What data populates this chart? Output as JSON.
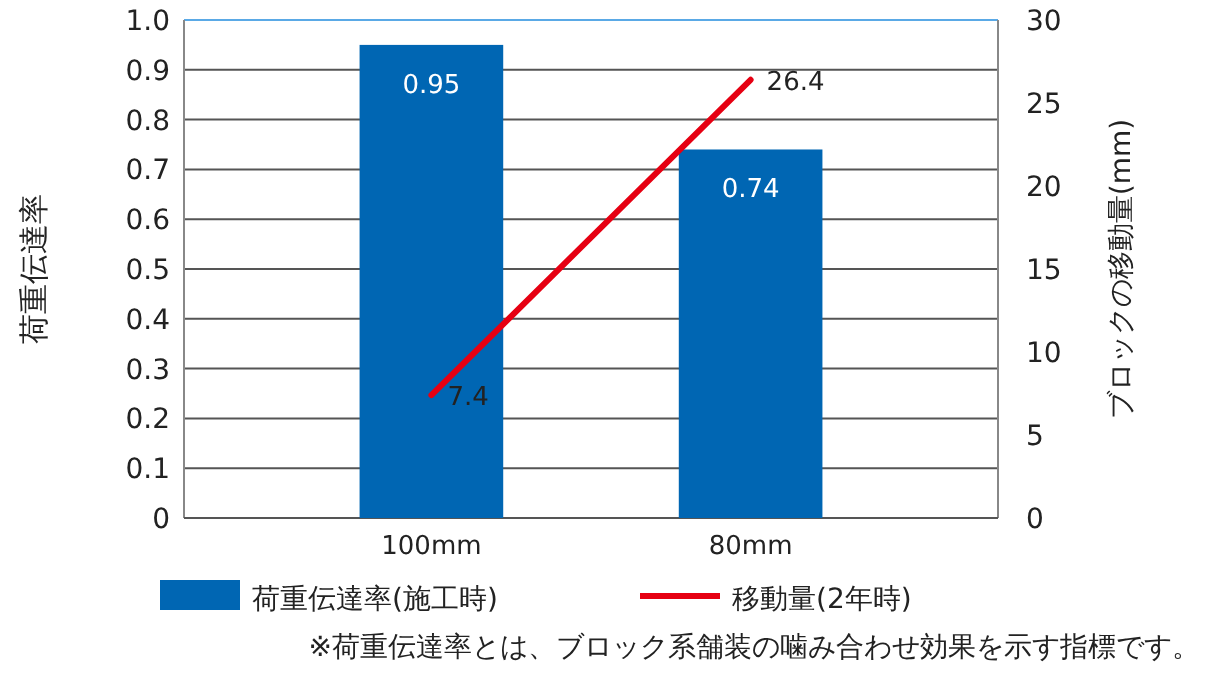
{
  "chart_data": {
    "type": "bar",
    "categories": [
      "100mm",
      "80mm"
    ],
    "series": [
      {
        "name": "荷重伝達率(施工時)",
        "color": "#0066b3",
        "values": [
          0.95,
          0.74
        ]
      },
      {
        "name": "移動量(2年時)",
        "type": "line",
        "axis": "y2",
        "color": "#e60012",
        "values": [
          7.4,
          26.4
        ]
      }
    ],
    "ylabel": "荷重伝達率",
    "y2label": "ブロックの移動量(mm)",
    "ylim": [
      0,
      1
    ],
    "yticks": [
      {
        "value": 0,
        "label": "0"
      },
      {
        "value": 0.1,
        "label": "0.1"
      },
      {
        "value": 0.2,
        "label": "0.2"
      },
      {
        "value": 0.3,
        "label": "0.3"
      },
      {
        "value": 0.4,
        "label": "0.4"
      },
      {
        "value": 0.5,
        "label": "0.5"
      },
      {
        "value": 0.6,
        "label": "0.6"
      },
      {
        "value": 0.7,
        "label": "0.7"
      },
      {
        "value": 0.8,
        "label": "0.8"
      },
      {
        "value": 0.9,
        "label": "0.9"
      },
      {
        "value": 1,
        "label": "1.0"
      }
    ],
    "y2lim": [
      0,
      30
    ],
    "y2ticks": [
      0,
      5,
      10,
      15,
      20,
      25,
      30
    ],
    "grid": "y",
    "legend": "bottom",
    "data_labels": true,
    "annotations": [
      "※荷重伝達率とは、ブロック系舗装の噛み合わせ効果を示す指標です。"
    ]
  }
}
